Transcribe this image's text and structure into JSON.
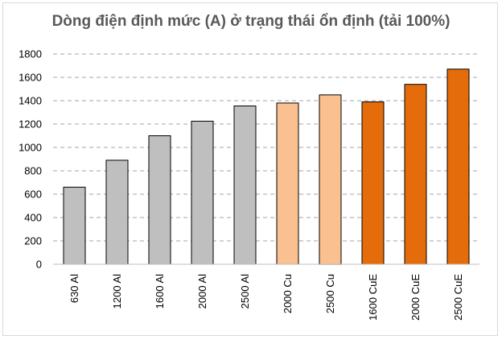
{
  "chart_data": {
    "type": "bar",
    "title": "Dòng điện định mức (A) ở trạng thái ổn định (tải 100%)",
    "xlabel": "",
    "ylabel": "",
    "categories": [
      "630 Al",
      "1200 Al",
      "1600 Al",
      "2000 Al",
      "2500 Al",
      "2000 Cu",
      "2500 Cu",
      "1600 CuE",
      "2000 CuE",
      "2500 CuE"
    ],
    "values": [
      660,
      890,
      1100,
      1225,
      1355,
      1380,
      1450,
      1390,
      1540,
      1670
    ],
    "bar_colors": [
      "#bfbfbf",
      "#bfbfbf",
      "#bfbfbf",
      "#bfbfbf",
      "#bfbfbf",
      "#fac090",
      "#fac090",
      "#e46c0a",
      "#e46c0a",
      "#e46c0a"
    ],
    "yticks": [
      0,
      200,
      400,
      600,
      800,
      1000,
      1200,
      1400,
      1600,
      1800
    ],
    "ylim": [
      0,
      1800
    ],
    "grid": true,
    "gridline_color": "#a6a6a6",
    "legend": "none"
  }
}
